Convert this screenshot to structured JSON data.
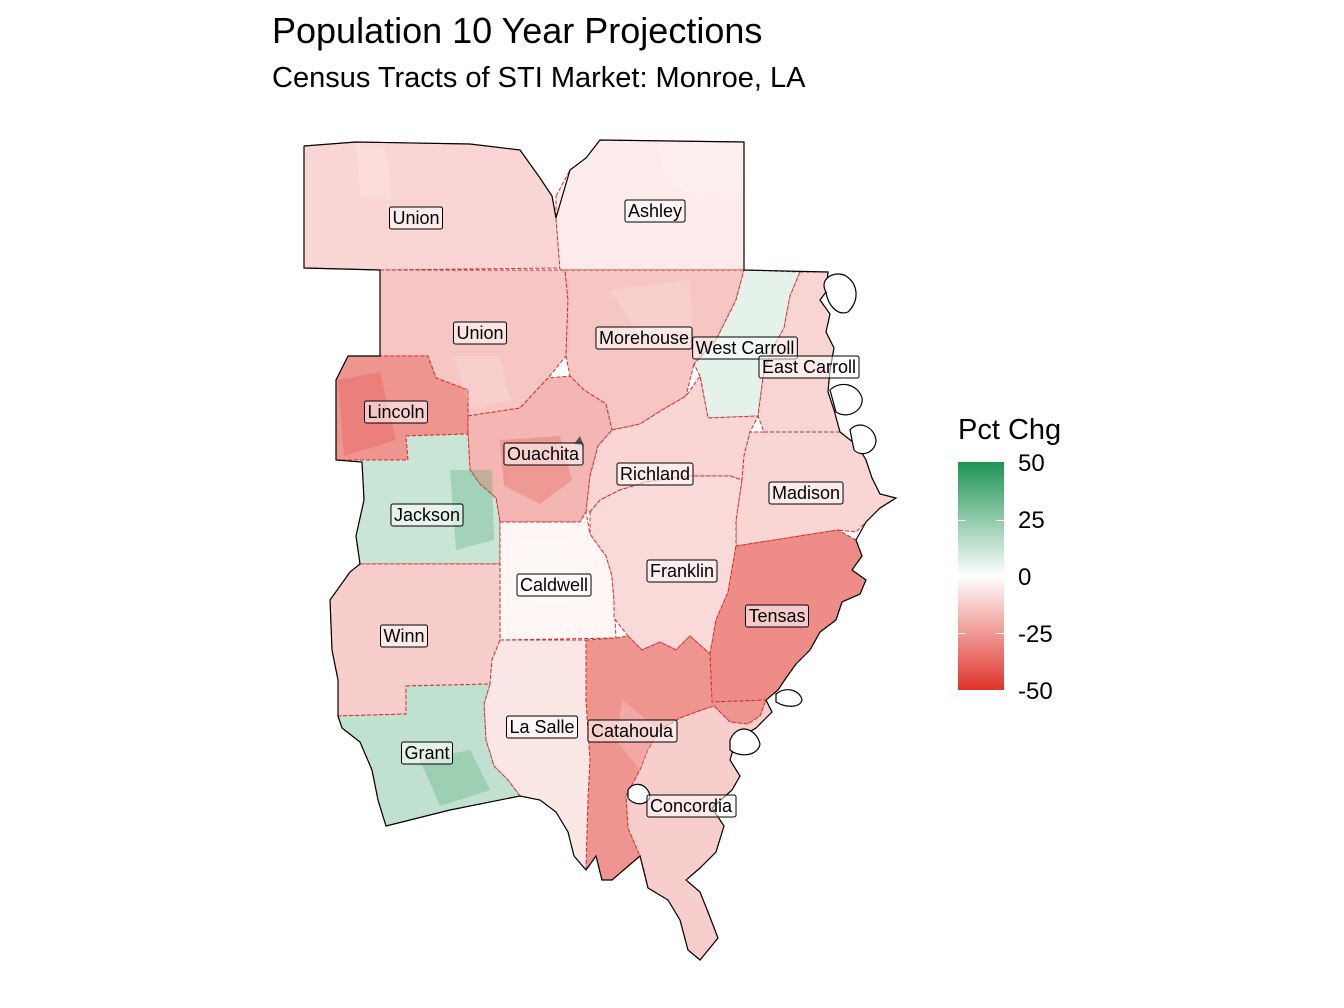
{
  "title": "Population 10 Year Projections",
  "subtitle": "Census Tracts of STI Market: Monroe, LA",
  "legend": {
    "title": "Pct Chg",
    "ticks": [
      "50",
      "25",
      "0",
      "-25",
      "-50"
    ],
    "colors": {
      "high": "#1e9352",
      "mid": "#ffffff",
      "low": "#e0332a"
    },
    "range": [
      -50,
      50
    ]
  },
  "counties": [
    {
      "name": "Union",
      "pct": -10
    },
    {
      "name": "Ashley",
      "pct": -5
    },
    {
      "name": "Union",
      "pct": -14
    },
    {
      "name": "Morehouse",
      "pct": -14
    },
    {
      "name": "West Carroll",
      "pct": 6
    },
    {
      "name": "East Carroll",
      "pct": -10
    },
    {
      "name": "Lincoln",
      "pct": -26
    },
    {
      "name": "Ouachita",
      "pct": -18
    },
    {
      "name": "Richland",
      "pct": -10
    },
    {
      "name": "Madison",
      "pct": -10
    },
    {
      "name": "Jackson",
      "pct": 12
    },
    {
      "name": "Caldwell",
      "pct": -2
    },
    {
      "name": "Franklin",
      "pct": -9
    },
    {
      "name": "Tensas",
      "pct": -28
    },
    {
      "name": "Winn",
      "pct": -12
    },
    {
      "name": "La Salle",
      "pct": -6
    },
    {
      "name": "Catahoula",
      "pct": -26
    },
    {
      "name": "Concordia",
      "pct": -12
    },
    {
      "name": "Grant",
      "pct": 14
    }
  ]
}
